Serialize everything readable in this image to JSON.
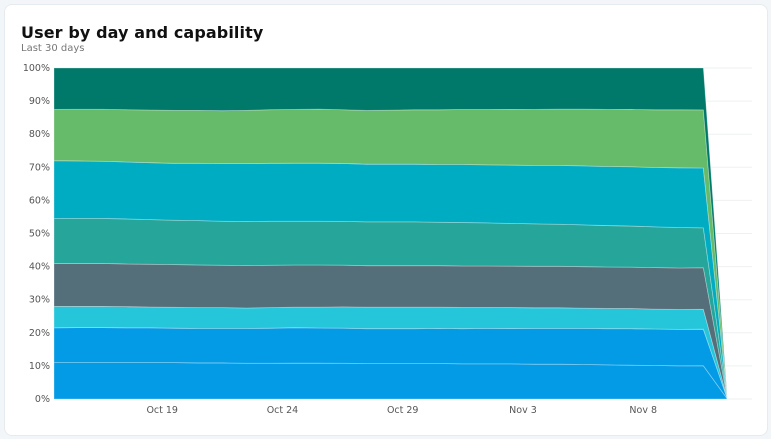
{
  "header": {
    "title": "User by day and capability",
    "subtitle": "Last 30 days"
  },
  "chart_data": {
    "type": "area",
    "stacking": "percent",
    "title": "User by day and capability",
    "subtitle": "Last 30 days",
    "x": [
      "Oct 14",
      "Oct 15",
      "Oct 16",
      "Oct 17",
      "Oct 18",
      "Oct 19",
      "Oct 20",
      "Oct 21",
      "Oct 22",
      "Oct 23",
      "Oct 24",
      "Oct 25",
      "Oct 26",
      "Oct 27",
      "Oct 28",
      "Oct 29",
      "Oct 30",
      "Oct 31",
      "Nov 1",
      "Nov 2",
      "Nov 3",
      "Nov 4",
      "Nov 5",
      "Nov 6",
      "Nov 7",
      "Nov 8",
      "Nov 9",
      "Nov 10",
      "Nov 11"
    ],
    "x_ticks": [
      "Oct 19",
      "Oct 24",
      "Oct 29",
      "Nov 3",
      "Nov 8"
    ],
    "y_ticks": [
      "0%",
      "10%",
      "20%",
      "30%",
      "40%",
      "50%",
      "60%",
      "70%",
      "80%",
      "90%",
      "100%"
    ],
    "ylim": [
      0,
      100
    ],
    "grid": true,
    "series": [
      {
        "color": "#039be5",
        "values": [
          11,
          11,
          11,
          11,
          11,
          11,
          10.9,
          10.9,
          10.8,
          10.8,
          10.8,
          10.8,
          10.8,
          10.7,
          10.7,
          10.7,
          10.7,
          10.6,
          10.6,
          10.6,
          10.5,
          10.5,
          10.4,
          10.3,
          10.2,
          10.1,
          10,
          10,
          0
        ]
      },
      {
        "color": "#039be5",
        "values": [
          10.5,
          10.6,
          10.6,
          10.5,
          10.5,
          10.4,
          10.4,
          10.4,
          10.5,
          10.6,
          10.7,
          10.6,
          10.6,
          10.5,
          10.5,
          10.5,
          10.6,
          10.6,
          10.7,
          10.7,
          10.8,
          10.8,
          10.9,
          10.9,
          11,
          11,
          11,
          11,
          0
        ]
      },
      {
        "color": "#26c6da",
        "values": [
          6.5,
          6.4,
          6.4,
          6.4,
          6.3,
          6.3,
          6.3,
          6.3,
          6.2,
          6.2,
          6.2,
          6.3,
          6.4,
          6.5,
          6.5,
          6.5,
          6.4,
          6.4,
          6.3,
          6.3,
          6.2,
          6.2,
          6.1,
          6.1,
          6.1,
          6,
          6,
          6,
          0
        ]
      },
      {
        "color": "#546e7a",
        "values": [
          13,
          13,
          13,
          12.9,
          12.9,
          12.9,
          12.9,
          12.8,
          12.8,
          12.8,
          12.7,
          12.7,
          12.6,
          12.5,
          12.5,
          12.5,
          12.5,
          12.5,
          12.5,
          12.5,
          12.5,
          12.5,
          12.5,
          12.5,
          12.5,
          12.5,
          12.5,
          12.5,
          0
        ]
      },
      {
        "color": "#26a69a",
        "values": [
          13.5,
          13.6,
          13.6,
          13.6,
          13.5,
          13.4,
          13.4,
          13.3,
          13.3,
          13.3,
          13.2,
          13.2,
          13.2,
          13.2,
          13.2,
          13.2,
          13.1,
          13.1,
          13,
          12.9,
          12.8,
          12.7,
          12.6,
          12.5,
          12.4,
          12.3,
          12.2,
          12,
          0
        ]
      },
      {
        "color": "#00acc1",
        "values": [
          17.5,
          17.4,
          17.3,
          17.2,
          17.2,
          17.2,
          17.3,
          17.4,
          17.5,
          17.5,
          17.5,
          17.5,
          17.5,
          17.4,
          17.4,
          17.4,
          17.4,
          17.5,
          17.5,
          17.6,
          17.6,
          17.7,
          17.8,
          17.8,
          17.9,
          17.9,
          18,
          18,
          0
        ]
      },
      {
        "color": "#66bb6a",
        "values": [
          15.5,
          15.6,
          15.7,
          15.8,
          15.9,
          16,
          16,
          16,
          16.1,
          16.2,
          16.2,
          16.3,
          16.2,
          16.2,
          16.3,
          16.4,
          16.5,
          16.6,
          16.7,
          16.8,
          16.9,
          17,
          17.1,
          17.2,
          17.3,
          17.4,
          17.5,
          17.5,
          0
        ]
      },
      {
        "color": "#00796b",
        "values": [
          12.5,
          12.5,
          12.5,
          12.6,
          12.7,
          12.8,
          12.8,
          12.9,
          12.8,
          12.6,
          12.5,
          12.4,
          12.6,
          12.8,
          12.7,
          12.6,
          12.6,
          12.5,
          12.5,
          12.5,
          12.5,
          12.4,
          12.4,
          12.5,
          12.5,
          12.6,
          12.6,
          12.6,
          0
        ]
      }
    ]
  }
}
